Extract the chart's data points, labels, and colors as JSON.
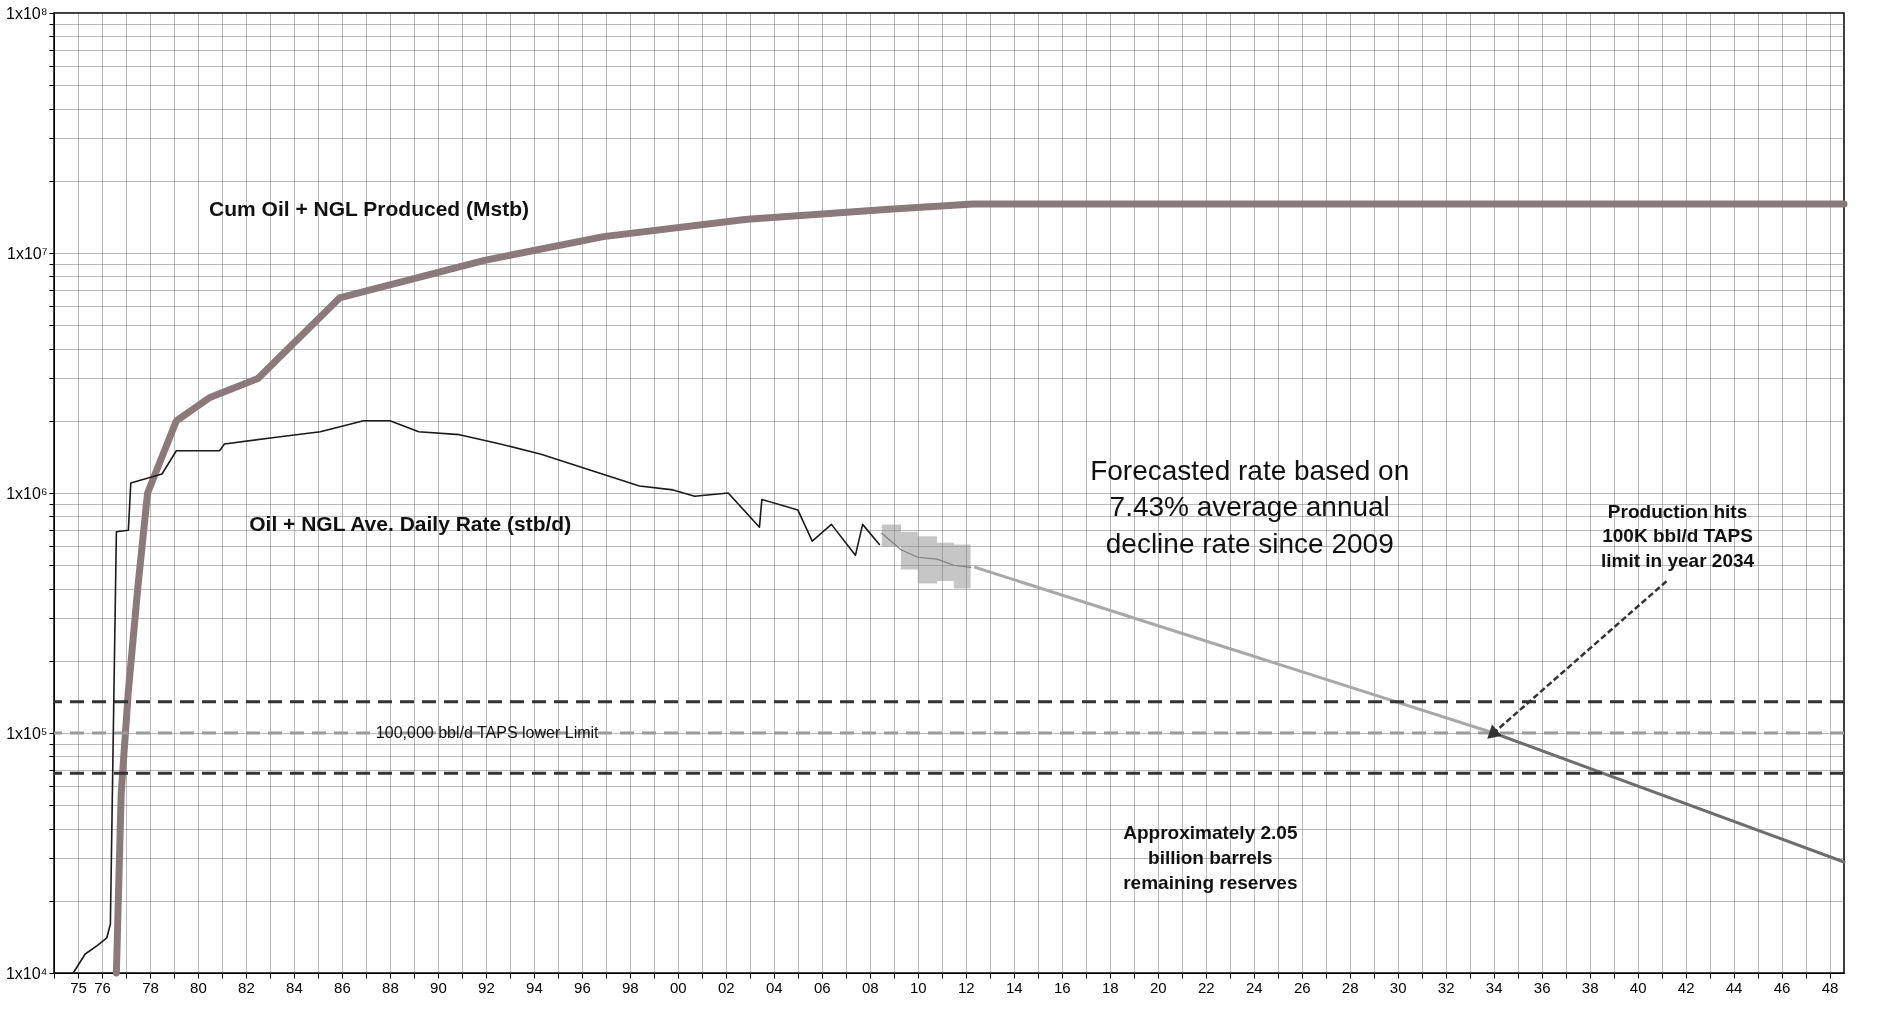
{
  "chart_data": {
    "type": "line",
    "log": "y",
    "grid": true,
    "xlim": [
      1974,
      2048.6
    ],
    "xticks": [
      {
        "value": 1974,
        "label": null
      },
      {
        "value": 1975,
        "label": "75"
      },
      {
        "value": 1976,
        "label": "76"
      },
      {
        "value": 1977,
        "label": null
      },
      {
        "value": 1978,
        "label": "78"
      },
      {
        "value": 1979,
        "label": null
      },
      {
        "value": 1980,
        "label": "80"
      },
      {
        "value": 1981,
        "label": null
      },
      {
        "value": 1982,
        "label": "82"
      },
      {
        "value": 1983,
        "label": null
      },
      {
        "value": 1984,
        "label": "84"
      },
      {
        "value": 1985,
        "label": null
      },
      {
        "value": 1986,
        "label": "86"
      },
      {
        "value": 1987,
        "label": null
      },
      {
        "value": 1988,
        "label": "88"
      },
      {
        "value": 1989,
        "label": null
      },
      {
        "value": 1990,
        "label": "90"
      },
      {
        "value": 1991,
        "label": null
      },
      {
        "value": 1992,
        "label": "92"
      },
      {
        "value": 1993,
        "label": null
      },
      {
        "value": 1994,
        "label": "94"
      },
      {
        "value": 1995,
        "label": null
      },
      {
        "value": 1996,
        "label": "96"
      },
      {
        "value": 1997,
        "label": null
      },
      {
        "value": 1998,
        "label": "98"
      },
      {
        "value": 1999,
        "label": null
      },
      {
        "value": 2000,
        "label": "00"
      },
      {
        "value": 2001,
        "label": null
      },
      {
        "value": 2002,
        "label": "02"
      },
      {
        "value": 2003,
        "label": null
      },
      {
        "value": 2004,
        "label": "04"
      },
      {
        "value": 2005,
        "label": null
      },
      {
        "value": 2006,
        "label": "06"
      },
      {
        "value": 2007,
        "label": null
      },
      {
        "value": 2008,
        "label": "08"
      },
      {
        "value": 2009,
        "label": null
      },
      {
        "value": 2010,
        "label": "10"
      },
      {
        "value": 2011,
        "label": null
      },
      {
        "value": 2012,
        "label": "12"
      },
      {
        "value": 2013,
        "label": null
      },
      {
        "value": 2014,
        "label": "14"
      },
      {
        "value": 2015,
        "label": null
      },
      {
        "value": 2016,
        "label": "16"
      },
      {
        "value": 2017,
        "label": null
      },
      {
        "value": 2018,
        "label": "18"
      },
      {
        "value": 2019,
        "label": null
      },
      {
        "value": 2020,
        "label": "20"
      },
      {
        "value": 2021,
        "label": null
      },
      {
        "value": 2022,
        "label": "22"
      },
      {
        "value": 2023,
        "label": null
      },
      {
        "value": 2024,
        "label": "24"
      },
      {
        "value": 2025,
        "label": null
      },
      {
        "value": 2026,
        "label": "26"
      },
      {
        "value": 2027,
        "label": null
      },
      {
        "value": 2028,
        "label": "28"
      },
      {
        "value": 2029,
        "label": null
      },
      {
        "value": 2030,
        "label": "30"
      },
      {
        "value": 2031,
        "label": null
      },
      {
        "value": 2032,
        "label": "32"
      },
      {
        "value": 2033,
        "label": null
      },
      {
        "value": 2034,
        "label": "34"
      },
      {
        "value": 2035,
        "label": null
      },
      {
        "value": 2036,
        "label": "36"
      },
      {
        "value": 2037,
        "label": null
      },
      {
        "value": 2038,
        "label": "38"
      },
      {
        "value": 2039,
        "label": null
      },
      {
        "value": 2040,
        "label": "40"
      },
      {
        "value": 2041,
        "label": null
      },
      {
        "value": 2042,
        "label": "42"
      },
      {
        "value": 2043,
        "label": null
      },
      {
        "value": 2044,
        "label": "44"
      },
      {
        "value": 2045,
        "label": null
      },
      {
        "value": 2046,
        "label": "46"
      },
      {
        "value": 2047,
        "label": null
      },
      {
        "value": 2048,
        "label": "48"
      }
    ],
    "ylim": [
      10000,
      100000000
    ],
    "yticks": [
      {
        "value": 10000,
        "label": "1x10⁴"
      },
      {
        "value": 20000,
        "label": null
      },
      {
        "value": 30000,
        "label": null
      },
      {
        "value": 40000,
        "label": null
      },
      {
        "value": 50000,
        "label": null
      },
      {
        "value": 60000,
        "label": null
      },
      {
        "value": 70000,
        "label": null
      },
      {
        "value": 80000,
        "label": null
      },
      {
        "value": 90000,
        "label": null
      },
      {
        "value": 100000,
        "label": "1x10⁵"
      },
      {
        "value": 200000,
        "label": null
      },
      {
        "value": 300000,
        "label": null
      },
      {
        "value": 400000,
        "label": null
      },
      {
        "value": 500000,
        "label": null
      },
      {
        "value": 600000,
        "label": null
      },
      {
        "value": 700000,
        "label": null
      },
      {
        "value": 800000,
        "label": null
      },
      {
        "value": 900000,
        "label": null
      },
      {
        "value": 1000000,
        "label": "1x10⁶"
      },
      {
        "value": 2000000,
        "label": null
      },
      {
        "value": 3000000,
        "label": null
      },
      {
        "value": 4000000,
        "label": null
      },
      {
        "value": 5000000,
        "label": null
      },
      {
        "value": 6000000,
        "label": null
      },
      {
        "value": 7000000,
        "label": null
      },
      {
        "value": 8000000,
        "label": null
      },
      {
        "value": 9000000,
        "label": null
      },
      {
        "value": 10000000,
        "label": "1x10⁷"
      },
      {
        "value": 20000000,
        "label": null
      },
      {
        "value": 30000000,
        "label": null
      },
      {
        "value": 40000000,
        "label": null
      },
      {
        "value": 50000000,
        "label": null
      },
      {
        "value": 60000000,
        "label": null
      },
      {
        "value": 70000000,
        "label": null
      },
      {
        "value": 80000000,
        "label": null
      },
      {
        "value": 90000000,
        "label": null
      },
      {
        "value": 100000000,
        "label": "1x10⁸"
      }
    ],
    "series": [
      {
        "color": "#8a7a7c",
        "x": [
          1976.6,
          1976.8,
          1977.1,
          1977.5,
          1977.9,
          1979.1,
          1980.5,
          1982.5,
          1985.9,
          1991.9,
          1996.9,
          2002.8,
          2008.8,
          2012.3,
          2048.6
        ],
        "values": [
          10000,
          56000,
          150000,
          410000,
          1000000,
          2000000,
          2500000,
          3000000,
          6500000,
          9300000,
          11700000,
          13800000,
          15200000,
          16000000,
          16000000
        ]
      },
      {
        "color": "#1a1a1a",
        "x": [
          1974.8,
          1975.3,
          1975.8,
          1976.2,
          1976.35,
          1976.6,
          1977.1,
          1977.2,
          1978.5,
          1979.1,
          1980.9,
          1981.1,
          1983.1,
          1985.1,
          1986.9,
          1988.0,
          1989.2,
          1990.9,
          1992.6,
          1994.3,
          1996.3,
          1998.4,
          1999.8,
          2000.7,
          2002.1,
          2003.4,
          2003.5,
          2005.0,
          2005.6,
          2006.4,
          2007.4,
          2007.7,
          2008.4
        ],
        "values": [
          10000,
          12000,
          13000,
          14000,
          16000,
          690000,
          700000,
          1100000,
          1200000,
          1500000,
          1500000,
          1600000,
          1700000,
          1800000,
          2000000,
          2000000,
          1800000,
          1750000,
          1600000,
          1450000,
          1250000,
          1070000,
          1030000,
          970000,
          1000000,
          720000,
          940000,
          850000,
          630000,
          740000,
          550000,
          740000,
          610000
        ]
      },
      {
        "color": "#808080",
        "x": [
          2008.5,
          2009.3,
          2010.0,
          2010.8,
          2011.5,
          2012.2
        ],
        "values": [
          680000,
          580000,
          540000,
          530000,
          500000,
          490000
        ],
        "lower": [
          600000,
          480000,
          420000,
          430000,
          400000,
          370000
        ],
        "upper": [
          740000,
          690000,
          660000,
          620000,
          610000,
          600000
        ]
      },
      {
        "color": "#a8a8a8",
        "x": [
          2012.4,
          2034.0
        ],
        "values": [
          490000,
          100000
        ]
      },
      {
        "color": "#6e6e6e",
        "x": [
          2034.0,
          2048.6
        ],
        "values": [
          100000,
          29000
        ]
      }
    ],
    "ref_lines": [
      {
        "axis": "y",
        "value": 135000,
        "color": "#333333",
        "line_style": "dashed"
      },
      {
        "axis": "y",
        "value": 100000,
        "color": "#9a9a9a",
        "line_style": "dashed",
        "label": "100,000 bbl/d TAPS lower Limit"
      },
      {
        "axis": "y",
        "value": 68000,
        "color": "#333333",
        "line_style": "dashed"
      }
    ],
    "annotations": [
      "Cum Oil +  NGL Produced (Mstb)",
      "Oil + NGL Ave. Daily Rate (stb/d)",
      "Forecasted rate based on\n7.43% average annual\ndecline rate since 2009",
      "Approximately 2.05\nbillion barrels\nremaining reserves",
      {
        "text": "Production  hits\n100K bbl/d TAPS\nlimit in year 2034",
        "x": 2034,
        "y": 100000
      }
    ]
  }
}
